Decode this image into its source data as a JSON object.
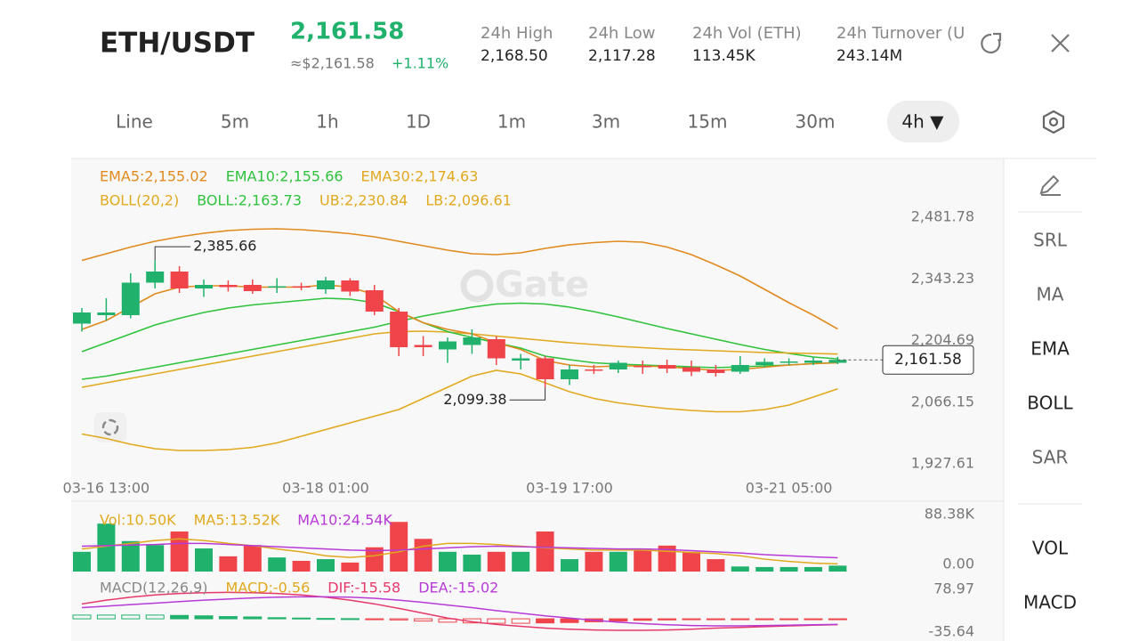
{
  "header": {
    "pair": "ETH/USDT",
    "price": "2,161.58",
    "approx": "≈$2,161.58",
    "change": "+1.11%",
    "stats": [
      {
        "label": "24h  High",
        "value": "2,168.50"
      },
      {
        "label": "24h  Low",
        "value": "2,117.28"
      },
      {
        "label": "24h  Vol (ETH)",
        "value": "113.45K"
      },
      {
        "label": "24h  Turnover (U",
        "value": "243.14M"
      }
    ]
  },
  "tabs": [
    "Line",
    "5m",
    "1h",
    "1D",
    "1m",
    "3m",
    "15m",
    "30m",
    "4h ▼"
  ],
  "sidebar": [
    "SRL",
    "MA",
    "EMA",
    "BOLL",
    "SAR",
    "VOL",
    "MACD"
  ],
  "watermark": "Gate",
  "chart_data": [
    {
      "type": "candlestick",
      "up_color": "#20b26c",
      "down_color": "#ef454a",
      "categories": [
        null,
        "03-16 13:00",
        null,
        null,
        null,
        null,
        null,
        null,
        null,
        null,
        "03-18 01:00",
        null,
        null,
        null,
        null,
        null,
        null,
        null,
        null,
        null,
        "03-19 17:00",
        null,
        null,
        null,
        null,
        null,
        null,
        null,
        null,
        "03-21 05:00",
        null,
        null
      ],
      "open": [
        2243,
        2262,
        2262,
        2335,
        2360,
        2322,
        2330,
        2330,
        2325,
        2327,
        2320,
        2340,
        2318,
        2270,
        2195,
        2185,
        2195,
        2208,
        2160,
        2165,
        2118,
        2140,
        2140,
        2148,
        2150,
        2145,
        2140,
        2135,
        2150,
        2155,
        2155,
        2155
      ],
      "high": [
        2278,
        2300,
        2356,
        2385.66,
        2372,
        2342,
        2340,
        2342,
        2345,
        2335,
        2348,
        2345,
        2330,
        2278,
        2215,
        2212,
        2230,
        2215,
        2175,
        2170,
        2150,
        2150,
        2160,
        2160,
        2162,
        2160,
        2150,
        2170,
        2165,
        2165,
        2168,
        2168.5
      ],
      "low": [
        2225,
        2250,
        2255,
        2322,
        2312,
        2303,
        2315,
        2310,
        2312,
        2318,
        2310,
        2305,
        2262,
        2170,
        2170,
        2155,
        2175,
        2150,
        2140,
        2099.38,
        2105,
        2130,
        2132,
        2130,
        2132,
        2125,
        2124,
        2130,
        2145,
        2150,
        2150,
        2152
      ],
      "close": [
        2268,
        2268,
        2335,
        2360,
        2322,
        2330,
        2325,
        2316,
        2327,
        2325,
        2340,
        2315,
        2270,
        2190,
        2190,
        2203,
        2212,
        2165,
        2165,
        2118,
        2140,
        2138,
        2155,
        2146,
        2142,
        2135,
        2132,
        2150,
        2157,
        2158,
        2160,
        2161.58
      ],
      "lines": [
        {
          "color": "#e08a1e",
          "values": [
            2385,
            2400,
            2415,
            2428,
            2438,
            2446,
            2452,
            2455,
            2456,
            2454,
            2450,
            2445,
            2438,
            2428,
            2418,
            2408,
            2400,
            2398,
            2402,
            2412,
            2420,
            2425,
            2428,
            2426,
            2415,
            2398,
            2375,
            2350,
            2320,
            2290,
            2262,
            2230.84
          ]
        },
        {
          "color": "#e0a91e",
          "values": [
            1995,
            1985,
            1972,
            1962,
            1958,
            1958,
            1960,
            1965,
            1975,
            1990,
            2005,
            2020,
            2035,
            2050,
            2075,
            2100,
            2125,
            2138,
            2130,
            2110,
            2090,
            2075,
            2065,
            2058,
            2052,
            2048,
            2045,
            2045,
            2050,
            2060,
            2078,
            2096.61
          ]
        },
        {
          "color": "#2fc23c",
          "values": [
            2118,
            2125,
            2135,
            2145,
            2155,
            2165,
            2175,
            2185,
            2195,
            2205,
            2215,
            2225,
            2235,
            2248,
            2260,
            2270,
            2280,
            2287,
            2289,
            2287,
            2280,
            2270,
            2258,
            2245,
            2232,
            2220,
            2208,
            2196,
            2185,
            2176,
            2168,
            2163.73
          ]
        },
        {
          "color": "#e0a91e",
          "values": [
            2100,
            2110,
            2120,
            2130,
            2140,
            2150,
            2160,
            2170,
            2180,
            2190,
            2200,
            2210,
            2220,
            2225,
            2226,
            2224,
            2220,
            2215,
            2210,
            2205,
            2200,
            2196,
            2192,
            2189,
            2186,
            2184,
            2182,
            2180,
            2178,
            2177,
            2176,
            2174.63
          ]
        },
        {
          "color": "#2fc23c",
          "values": [
            2180,
            2200,
            2220,
            2240,
            2255,
            2268,
            2278,
            2285,
            2290,
            2295,
            2300,
            2298,
            2290,
            2270,
            2245,
            2225,
            2212,
            2200,
            2188,
            2170,
            2162,
            2155,
            2152,
            2150,
            2148,
            2146,
            2144,
            2146,
            2148,
            2150,
            2153,
            2155.66
          ]
        },
        {
          "color": "#e08a1e",
          "values": [
            2230,
            2250,
            2280,
            2310,
            2325,
            2328,
            2328,
            2325,
            2325,
            2325,
            2330,
            2325,
            2308,
            2270,
            2245,
            2230,
            2220,
            2200,
            2185,
            2160,
            2150,
            2146,
            2148,
            2148,
            2146,
            2142,
            2138,
            2140,
            2145,
            2150,
            2153,
            2155.02
          ]
        }
      ],
      "legend": [
        [
          {
            "text": "EMA5:2,155.02",
            "color": "#e08a1e"
          },
          {
            "text": "EMA10:2,155.66",
            "color": "#2fc23c"
          },
          {
            "text": "EMA30:2,174.63",
            "color": "#e0a91e"
          }
        ],
        [
          {
            "text": "BOLL(20,2)",
            "color": "#e0a91e"
          },
          {
            "text": "BOLL:2,163.73",
            "color": "#2fc23c"
          },
          {
            "text": "UB:2,230.84",
            "color": "#e0a91e"
          },
          {
            "text": "LB:2,096.61",
            "color": "#e0a91e"
          }
        ]
      ],
      "max_label": "2,385.66",
      "min_label": "2,099.38",
      "last_label": "2,161.58",
      "ylim": [
        1880,
        2590
      ],
      "yticks": [
        {
          "value": 2481.78,
          "label": "2,481.78"
        },
        {
          "value": 2343.23,
          "label": "2,343.23"
        },
        {
          "value": 2204.69,
          "label": "2,204.69"
        },
        {
          "value": 2066.15,
          "label": "2,066.15"
        },
        {
          "value": 1927.61,
          "label": "1,927.61"
        }
      ]
    },
    {
      "type": "bar",
      "values": [
        35,
        85,
        54,
        47,
        71,
        41,
        27,
        47,
        25,
        19,
        22,
        16,
        43,
        88,
        58,
        35,
        30,
        35,
        35,
        71,
        22,
        35,
        35,
        38,
        46,
        35,
        22,
        9,
        8,
        8,
        8,
        10.5
      ],
      "lines": [
        {
          "color": "#e0a91e",
          "values": [
            40,
            45,
            50,
            55,
            58,
            55,
            50,
            46,
            40,
            35,
            28,
            25,
            28,
            35,
            45,
            50,
            50,
            48,
            45,
            42,
            40,
            38,
            38,
            38,
            36,
            34,
            32,
            28,
            22,
            18,
            15,
            13.52
          ]
        },
        {
          "color": "#b83ad6",
          "values": [
            45,
            46,
            47,
            48,
            50,
            50,
            48,
            46,
            44,
            42,
            40,
            38,
            37,
            38,
            40,
            42,
            44,
            45,
            44,
            43,
            42,
            41,
            40,
            40,
            39,
            37,
            35,
            33,
            30,
            28,
            26,
            24.54
          ]
        }
      ],
      "legend": [
        [
          {
            "text": "Vol:10.50K",
            "color": "#e0a91e"
          },
          {
            "text": "MA5:13.52K",
            "color": "#e0a91e"
          },
          {
            "text": "MA10:24.54K",
            "color": "#b83ad6"
          }
        ]
      ],
      "ylim": [
        0,
        88.38
      ],
      "yticks": [
        {
          "value": 88.38,
          "label": "88.38K"
        },
        {
          "value": 0,
          "label": "0.00"
        }
      ]
    },
    {
      "type": "macd",
      "up_color": "#20b26c",
      "down_color": "#ef454a",
      "values": [
        10,
        10,
        10,
        10,
        9,
        8,
        6,
        5,
        3,
        2,
        1,
        0.5,
        -1,
        -3,
        -6,
        -9,
        -11,
        -12,
        -12,
        -11,
        -10,
        -8,
        -6,
        -4,
        -3,
        -2,
        -1.5,
        -1,
        -0.8,
        -0.6,
        -0.6,
        -0.56
      ],
      "lines": [
        {
          "color": "#e6396b",
          "values": [
            40,
            50,
            58,
            64,
            68,
            70,
            71,
            70,
            68,
            64,
            58,
            50,
            40,
            28,
            15,
            2,
            -8,
            -15,
            -20,
            -25,
            -28,
            -30,
            -31,
            -31,
            -30,
            -28,
            -25,
            -23,
            -21,
            -19,
            -17,
            -15.58
          ]
        },
        {
          "color": "#b83ad6",
          "values": [
            30,
            34,
            38,
            42,
            46,
            50,
            53,
            56,
            58,
            59,
            59,
            58,
            55,
            50,
            44,
            37,
            30,
            22,
            15,
            8,
            2,
            -4,
            -9,
            -13,
            -16,
            -18,
            -19,
            -19,
            -18,
            -17,
            -16,
            -15.02
          ]
        }
      ],
      "legend": [
        [
          {
            "text": "MACD(12,26,9)",
            "color": "#888888"
          },
          {
            "text": "MACD:-0.56",
            "color": "#e0a91e"
          },
          {
            "text": "DIF:-15.58",
            "color": "#e6396b"
          },
          {
            "text": "DEA:-15.02",
            "color": "#b83ad6"
          }
        ]
      ],
      "ylim": [
        -35.64,
        78.97
      ],
      "yticks": [
        {
          "value": 78.97,
          "label": "78.97"
        },
        {
          "value": -35.64,
          "label": "-35.64"
        }
      ]
    }
  ]
}
